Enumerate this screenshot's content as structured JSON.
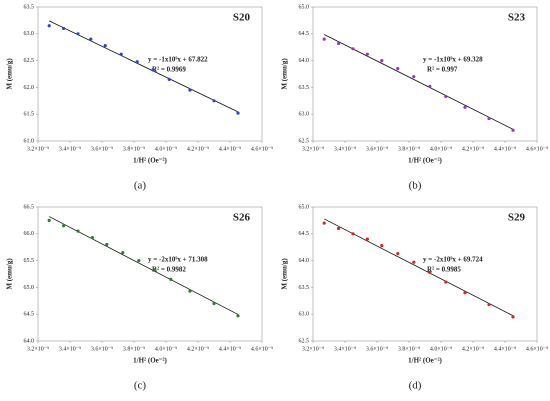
{
  "chart_data": [
    {
      "type": "scatter",
      "title": "S20",
      "panel": "(a)",
      "xlabel": "1/H² (Oe⁻²)",
      "ylabel": "M (emu/g)",
      "equation": "y = -1x10⁹x + 67.822",
      "r2": "R² = 0.9969",
      "color": "#3344cc",
      "x": [
        3.27e-09,
        3.36e-09,
        3.45e-09,
        3.53e-09,
        3.62e-09,
        3.72e-09,
        3.82e-09,
        3.92e-09,
        4.02e-09,
        4.15e-09,
        4.3e-09,
        4.45e-09
      ],
      "values": [
        63.15,
        63.1,
        63.0,
        62.9,
        62.78,
        62.62,
        62.48,
        62.33,
        62.15,
        61.95,
        61.75,
        61.52
      ],
      "xlim": [
        3.2e-09,
        4.6e-09
      ],
      "ylim": [
        61.0,
        63.5
      ],
      "xticks": [
        {
          "value": 3.2e-09,
          "label": "3.2×10⁻⁹"
        },
        {
          "value": 3.4e-09,
          "label": "3.4×10⁻⁹"
        },
        {
          "value": 3.6e-09,
          "label": "3.6×10⁻⁹"
        },
        {
          "value": 3.8e-09,
          "label": "3.8×10⁻⁹"
        },
        {
          "value": 4e-09,
          "label": "4.0×10⁻⁹"
        },
        {
          "value": 4.2e-09,
          "label": "4.2×10⁻⁹"
        },
        {
          "value": 4.4e-09,
          "label": "4.4×10⁻⁹"
        },
        {
          "value": 4.6e-09,
          "label": "4.6×10⁻⁹"
        }
      ],
      "yticks": [
        {
          "value": 61,
          "label": "61.0"
        },
        61.5,
        {
          "value": 62,
          "label": "62.0"
        },
        62.5,
        {
          "value": 63,
          "label": "63.0"
        },
        63.5
      ]
    },
    {
      "type": "scatter",
      "title": "S23",
      "panel": "(b)",
      "xlabel": "1/H² (Oe⁻²)",
      "ylabel": "M (emu/g)",
      "equation": "y = -1x10⁹x + 69.328",
      "r2": "R² = 0.997",
      "color": "#9933cc",
      "x": [
        3.27e-09,
        3.36e-09,
        3.45e-09,
        3.54e-09,
        3.63e-09,
        3.73e-09,
        3.83e-09,
        3.93e-09,
        4.03e-09,
        4.15e-09,
        4.3e-09,
        4.45e-09
      ],
      "values": [
        64.4,
        64.32,
        64.22,
        64.12,
        64.0,
        63.85,
        63.7,
        63.52,
        63.33,
        63.13,
        62.92,
        62.7
      ],
      "xlim": [
        3.2e-09,
        4.6e-09
      ],
      "ylim": [
        62.5,
        65.0
      ],
      "xticks": [
        {
          "value": 3.2e-09,
          "label": "3.2×10⁻⁹"
        },
        {
          "value": 3.4e-09,
          "label": "3.4×10⁻⁹"
        },
        {
          "value": 3.6e-09,
          "label": "3.6×10⁻⁹"
        },
        {
          "value": 3.8e-09,
          "label": "3.8×10⁻⁹"
        },
        {
          "value": 4e-09,
          "label": "4.0×10⁻⁹"
        },
        {
          "value": 4.2e-09,
          "label": "4.2×10⁻⁹"
        },
        {
          "value": 4.4e-09,
          "label": "4.4×10⁻⁹"
        },
        {
          "value": 4.6e-09,
          "label": "4.6×10⁻⁹"
        }
      ],
      "yticks": [
        62.5,
        {
          "value": 63,
          "label": "63.0"
        },
        63.5,
        {
          "value": 64,
          "label": "64.0"
        },
        64.5,
        {
          "value": 65,
          "label": "65.0"
        }
      ]
    },
    {
      "type": "scatter",
      "title": "S26",
      "panel": "(c)",
      "xlabel": "1/H² (Oe⁻²)",
      "ylabel": "M (emu/g)",
      "equation": "y = -2x10⁹x + 71.308",
      "r2": "R² = 0.9982",
      "color": "#2e7d32",
      "x": [
        3.27e-09,
        3.36e-09,
        3.45e-09,
        3.54e-09,
        3.63e-09,
        3.73e-09,
        3.83e-09,
        3.93e-09,
        4.03e-09,
        4.15e-09,
        4.3e-09,
        4.45e-09
      ],
      "values": [
        66.25,
        66.15,
        66.05,
        65.93,
        65.8,
        65.65,
        65.5,
        65.33,
        65.15,
        64.93,
        64.7,
        64.47
      ],
      "xlim": [
        3.2e-09,
        4.6e-09
      ],
      "ylim": [
        64.0,
        66.5
      ],
      "xticks": [
        {
          "value": 3.2e-09,
          "label": "3.2×10⁻⁹"
        },
        {
          "value": 3.4e-09,
          "label": "3.4×10⁻⁹"
        },
        {
          "value": 3.6e-09,
          "label": "3.6×10⁻⁹"
        },
        {
          "value": 3.8e-09,
          "label": "3.8×10⁻⁹"
        },
        {
          "value": 4e-09,
          "label": "4.0×10⁻⁹"
        },
        {
          "value": 4.2e-09,
          "label": "4.2×10⁻⁹"
        },
        {
          "value": 4.4e-09,
          "label": "4.4×10⁻⁹"
        },
        {
          "value": 4.6e-09,
          "label": "4.6×10⁻⁹"
        }
      ],
      "yticks": [
        {
          "value": 64,
          "label": "64.0"
        },
        64.5,
        {
          "value": 65,
          "label": "65.0"
        },
        65.5,
        {
          "value": 66,
          "label": "66.0"
        },
        66.5
      ]
    },
    {
      "type": "scatter",
      "title": "S29",
      "panel": "(d)",
      "xlabel": "1/H² (Oe⁻²)",
      "ylabel": "M (emu/g)",
      "equation": "y = -2x10⁹x + 69.724",
      "r2": "R² = 0.9985",
      "color": "#dd2222",
      "x": [
        3.27e-09,
        3.36e-09,
        3.45e-09,
        3.54e-09,
        3.63e-09,
        3.73e-09,
        3.83e-09,
        3.93e-09,
        4.03e-09,
        4.15e-09,
        4.3e-09,
        4.45e-09
      ],
      "values": [
        64.7,
        64.6,
        64.5,
        64.4,
        64.28,
        64.13,
        63.97,
        63.78,
        63.6,
        63.4,
        63.18,
        62.95
      ],
      "xlim": [
        3.2e-09,
        4.6e-09
      ],
      "ylim": [
        62.5,
        65.0
      ],
      "xticks": [
        {
          "value": 3.2e-09,
          "label": "3.2×10⁻⁹"
        },
        {
          "value": 3.4e-09,
          "label": "3.4×10⁻⁹"
        },
        {
          "value": 3.6e-09,
          "label": "3.6×10⁻⁹"
        },
        {
          "value": 3.8e-09,
          "label": "3.8×10⁻⁹"
        },
        {
          "value": 4e-09,
          "label": "4.0×10⁻⁹"
        },
        {
          "value": 4.2e-09,
          "label": "4.2×10⁻⁹"
        },
        {
          "value": 4.4e-09,
          "label": "4.4×10⁻⁹"
        },
        {
          "value": 4.6e-09,
          "label": "4.6×10⁻⁹"
        }
      ],
      "yticks": [
        62.5,
        {
          "value": 63,
          "label": "63.0"
        },
        63.5,
        {
          "value": 64,
          "label": "64.0"
        },
        64.5,
        {
          "value": 65,
          "label": "65.0"
        }
      ]
    }
  ]
}
